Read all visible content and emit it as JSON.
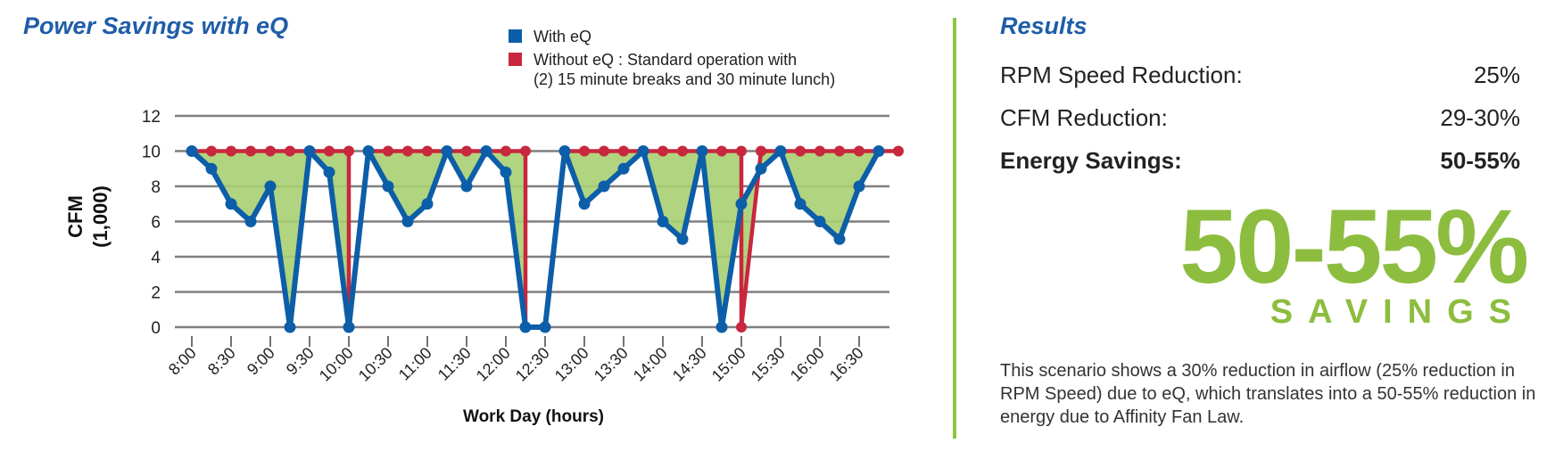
{
  "title": "Power Savings with eQ",
  "legend": {
    "with": {
      "label": "With eQ",
      "color": "#0d5ea8"
    },
    "without": {
      "label": "Without eQ : Standard operation with",
      "label2": "(2) 15 minute breaks and 30 minute lunch)",
      "color": "#c8273d"
    }
  },
  "chart_data": {
    "type": "line",
    "ylabel_line1": "CFM",
    "ylabel_line2": "(1,000)",
    "xlabel": "Work Day (hours)",
    "ylim": [
      0,
      12
    ],
    "yticks": [
      0,
      2,
      4,
      6,
      8,
      10,
      12
    ],
    "xticks": [
      "8:00",
      "8:30",
      "9:00",
      "9:30",
      "10:00",
      "10:30",
      "11:00",
      "11:30",
      "12:00",
      "12:30",
      "13:00",
      "13:30",
      "14:00",
      "14:30",
      "15:00",
      "15:30",
      "16:00",
      "16:30"
    ],
    "grid": true,
    "fill_color": "#a9cf72",
    "series": [
      {
        "name": "Without eQ : Standard operation with (2) 15 minute breaks and 30 minute lunch)",
        "color": "#c8273d",
        "points": [
          [
            0,
            10
          ],
          [
            0.5,
            10
          ],
          [
            1,
            10
          ],
          [
            1.5,
            10
          ],
          [
            2,
            10
          ],
          [
            2.5,
            10
          ],
          [
            3,
            10
          ],
          [
            3.5,
            10
          ],
          [
            4,
            10
          ],
          [
            4,
            0
          ],
          [
            4.5,
            10
          ],
          [
            5,
            10
          ],
          [
            5.5,
            10
          ],
          [
            6,
            10
          ],
          [
            6.5,
            10
          ],
          [
            7,
            10
          ],
          [
            7.5,
            10
          ],
          [
            8,
            10
          ],
          [
            8.5,
            10
          ],
          [
            8.5,
            0
          ],
          [
            9,
            0
          ],
          [
            9.5,
            10
          ],
          [
            10,
            10
          ],
          [
            10.5,
            10
          ],
          [
            11,
            10
          ],
          [
            11.5,
            10
          ],
          [
            12,
            10
          ],
          [
            12.5,
            10
          ],
          [
            13,
            10
          ],
          [
            13.5,
            10
          ],
          [
            14,
            10
          ],
          [
            14,
            0
          ],
          [
            14.5,
            10
          ],
          [
            15,
            10
          ],
          [
            15.5,
            10
          ],
          [
            16,
            10
          ],
          [
            16.5,
            10
          ],
          [
            17,
            10
          ],
          [
            17.5,
            10
          ],
          [
            18,
            10
          ]
        ]
      },
      {
        "name": "With eQ",
        "color": "#0d5ea8",
        "points": [
          [
            0,
            10
          ],
          [
            0.5,
            9
          ],
          [
            1,
            7
          ],
          [
            1.5,
            6
          ],
          [
            2,
            8
          ],
          [
            2.5,
            0
          ],
          [
            3,
            10
          ],
          [
            3.5,
            8.8
          ],
          [
            4,
            0
          ],
          [
            4.5,
            10
          ],
          [
            5,
            8
          ],
          [
            5.5,
            6
          ],
          [
            6,
            7
          ],
          [
            6.5,
            10
          ],
          [
            7,
            8
          ],
          [
            7.5,
            10
          ],
          [
            8,
            8.8
          ],
          [
            8.5,
            0
          ],
          [
            9,
            0
          ],
          [
            9.5,
            10
          ],
          [
            10,
            7
          ],
          [
            10.5,
            8
          ],
          [
            11,
            9
          ],
          [
            11.5,
            10
          ],
          [
            12,
            6
          ],
          [
            12.5,
            5
          ],
          [
            13,
            10
          ],
          [
            13.5,
            0
          ],
          [
            14,
            7
          ],
          [
            14.5,
            9
          ],
          [
            15,
            10
          ],
          [
            15.5,
            7
          ],
          [
            16,
            6
          ],
          [
            16.5,
            5
          ],
          [
            17,
            8
          ],
          [
            17.5,
            10
          ]
        ]
      }
    ]
  },
  "results": {
    "title": "Results",
    "rows": [
      {
        "label": "RPM Speed Reduction:",
        "value": "25%"
      },
      {
        "label": "CFM Reduction:",
        "value": "29-30%"
      },
      {
        "label": "Energy Savings:",
        "value": "50-55%"
      }
    ],
    "big_value": "50-55%",
    "big_caption": "SAVINGS",
    "description": "This scenario shows a 30% reduction in airflow (25% reduction in RPM Speed) due to eQ, which translates into a 50-55% reduction in energy due to Affinity Fan Law."
  }
}
